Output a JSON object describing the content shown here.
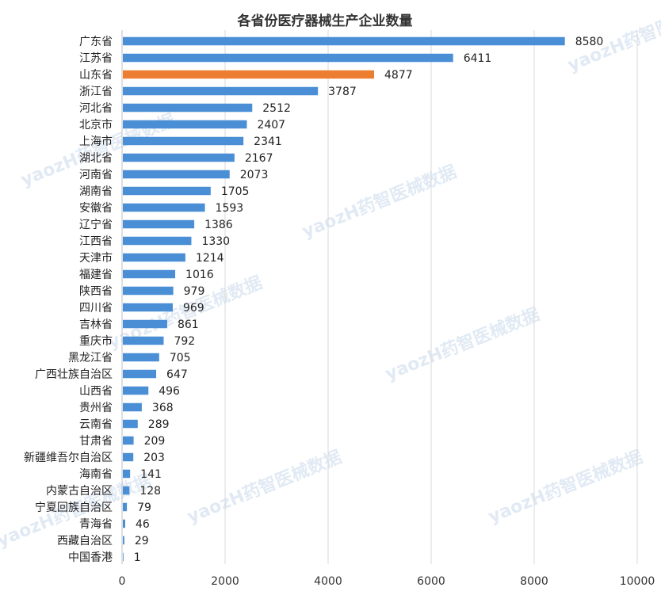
{
  "chart_data": {
    "type": "bar",
    "orientation": "horizontal",
    "title": "各省份医疗器械生产企业数量",
    "xlabel": "",
    "ylabel": "",
    "xlim": [
      0,
      10000
    ],
    "xticks": [
      0,
      2000,
      4000,
      6000,
      8000,
      10000
    ],
    "grid": true,
    "highlight_category": "山东省",
    "colors": {
      "bar": "#4a8fd6",
      "highlight": "#ed7d31"
    },
    "categories": [
      "广东省",
      "江苏省",
      "山东省",
      "浙江省",
      "河北省",
      "北京市",
      "上海市",
      "湖北省",
      "河南省",
      "湖南省",
      "安徽省",
      "辽宁省",
      "江西省",
      "天津市",
      "福建省",
      "陕西省",
      "四川省",
      "吉林省",
      "重庆市",
      "黑龙江省",
      "广西壮族自治区",
      "山西省",
      "贵州省",
      "云南省",
      "甘肃省",
      "新疆维吾尔自治区",
      "海南省",
      "内蒙古自治区",
      "宁夏回族自治区",
      "青海省",
      "西藏自治区",
      "中国香港"
    ],
    "values": [
      8580,
      6411,
      4877,
      3787,
      2512,
      2407,
      2341,
      2167,
      2073,
      1705,
      1593,
      1386,
      1330,
      1214,
      1016,
      979,
      969,
      861,
      792,
      705,
      647,
      496,
      368,
      289,
      209,
      203,
      141,
      128,
      79,
      46,
      29,
      1
    ]
  },
  "watermark": {
    "text": "yaozH药智医械数据"
  }
}
